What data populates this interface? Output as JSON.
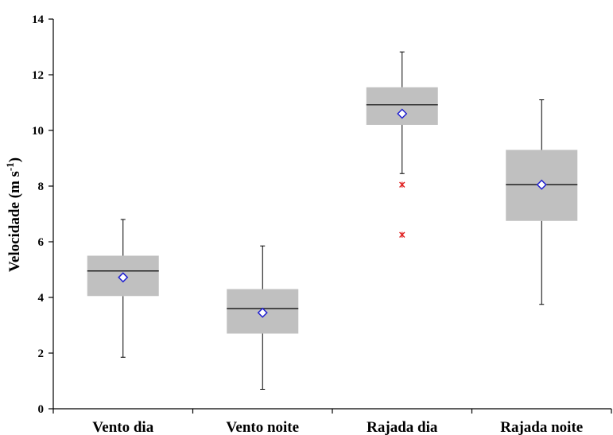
{
  "chart_data": {
    "type": "box",
    "ylabel": "Velocidade (m s",
    "ylabel_sup": "-1",
    "ylabel_close": ")",
    "ylim": [
      0,
      14
    ],
    "yticks": [
      0,
      2,
      4,
      6,
      8,
      10,
      12,
      14
    ],
    "grid": false,
    "categories": [
      "Vento dia",
      "Vento noite",
      "Rajada dia",
      "Rajada noite"
    ],
    "boxes": [
      {
        "whisker_low": 1.85,
        "q1": 4.05,
        "median": 4.95,
        "q3": 5.5,
        "whisker_high": 6.8,
        "mean": 4.72,
        "outliers": []
      },
      {
        "whisker_low": 0.7,
        "q1": 2.7,
        "median": 3.6,
        "q3": 4.3,
        "whisker_high": 5.85,
        "mean": 3.45,
        "outliers": []
      },
      {
        "whisker_low": 8.45,
        "q1": 10.2,
        "median": 10.92,
        "q3": 11.55,
        "whisker_high": 12.82,
        "mean": 10.6,
        "outliers": [
          8.05,
          6.25
        ]
      },
      {
        "whisker_low": 3.75,
        "q1": 6.75,
        "median": 8.05,
        "q3": 9.3,
        "whisker_high": 11.1,
        "mean": 8.05,
        "outliers": []
      }
    ],
    "colors": {
      "box": "#c0c0c0",
      "median": "#000000",
      "mean_marker": "#1f1fd0",
      "outlier": "#e02020",
      "axis": "#000000"
    }
  }
}
